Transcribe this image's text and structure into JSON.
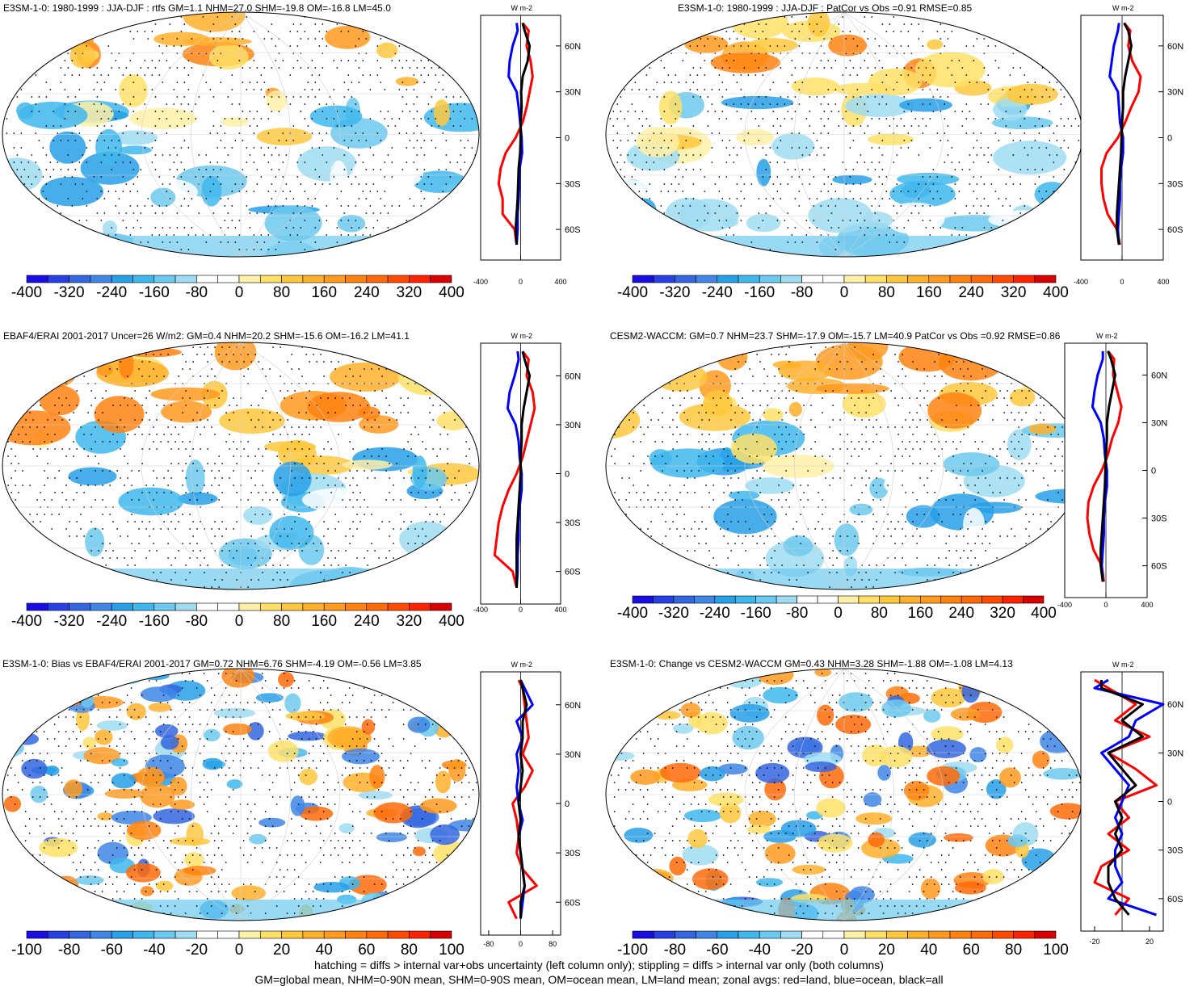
{
  "chart_data": [
    {
      "type": "heatmap",
      "title": "E3SM-1-0: 1980-1999 : JJA-DJF : rtfs GM=1.1 NHM=27.0 SHM=-19.8 OM=-16.8 LM=45.0",
      "colorbar_ticks": [
        "-400",
        "-320",
        "-240",
        "-160",
        "-80",
        "0",
        "80",
        "160",
        "240",
        "320",
        "400"
      ],
      "profile": {
        "unit": "W m-2",
        "xticks": [
          "-400",
          "0",
          "400"
        ],
        "xlim": [
          -400,
          400
        ],
        "yticks": [
          "60N",
          "30N",
          "0",
          "30S",
          "60S"
        ],
        "series": [
          {
            "color": "#ff0000",
            "lat": [
              75,
              70,
              60,
              50,
              40,
              30,
              20,
              10,
              0,
              -10,
              -20,
              -30,
              -40,
              -50,
              -60,
              -70
            ],
            "values": [
              20,
              80,
              60,
              100,
              120,
              90,
              60,
              20,
              -50,
              -150,
              -200,
              -220,
              -180,
              -180,
              -60,
              -40
            ]
          },
          {
            "color": "#0000ff",
            "lat": [
              75,
              70,
              60,
              50,
              40,
              30,
              20,
              10,
              0,
              -10,
              -20,
              -30,
              -40,
              -50,
              -60,
              -70
            ],
            "values": [
              -40,
              -30,
              -80,
              -110,
              -120,
              -40,
              -20,
              -5,
              10,
              15,
              -10,
              -15,
              -20,
              -30,
              -30,
              -40
            ]
          },
          {
            "color": "#000000",
            "lat": [
              75,
              70,
              60,
              50,
              40,
              30,
              20,
              10,
              0,
              -10,
              -20,
              -30,
              -40,
              -50,
              -60,
              -70
            ],
            "values": [
              20,
              40,
              90,
              70,
              20,
              5,
              10,
              0,
              0,
              -5,
              -20,
              -25,
              -30,
              -40,
              -50,
              -40
            ]
          }
        ]
      }
    },
    {
      "type": "heatmap",
      "title": "E3SM-1-0: 1980-1999 : JJA-DJF : PatCor vs Obs =0.91 RMSE=0.85",
      "colorbar_ticks": [
        "-400",
        "-320",
        "-240",
        "-160",
        "-80",
        "0",
        "80",
        "160",
        "240",
        "320",
        "400"
      ],
      "profile": {
        "unit": "W m-2",
        "xticks": [
          "-400",
          "0",
          "400"
        ],
        "xlim": [
          -400,
          400
        ],
        "yticks": [
          "60N",
          "30N",
          "0",
          "30S",
          "60S"
        ],
        "series": [
          {
            "color": "#ff0000",
            "lat": [
              75,
              70,
              60,
              50,
              40,
              30,
              20,
              10,
              0,
              -10,
              -20,
              -30,
              -40,
              -50,
              -60,
              -70
            ],
            "values": [
              20,
              80,
              60,
              100,
              180,
              160,
              90,
              30,
              -40,
              -150,
              -200,
              -200,
              -180,
              -140,
              -50,
              -20
            ]
          },
          {
            "color": "#0000ff",
            "lat": [
              75,
              70,
              60,
              50,
              40,
              30,
              20,
              10,
              0,
              -10,
              -20,
              -30,
              -40,
              -50,
              -60,
              -70
            ],
            "values": [
              -30,
              -40,
              -80,
              -100,
              -120,
              -40,
              -30,
              -20,
              10,
              10,
              -10,
              -20,
              -20,
              -30,
              -40,
              -30
            ]
          },
          {
            "color": "#000000",
            "lat": [
              75,
              70,
              60,
              50,
              40,
              30,
              20,
              10,
              0,
              -10,
              -20,
              -30,
              -40,
              -50,
              -60,
              -70
            ],
            "values": [
              20,
              60,
              90,
              60,
              30,
              10,
              10,
              0,
              -5,
              -10,
              -20,
              -30,
              -40,
              -50,
              -50,
              -30
            ]
          }
        ]
      }
    },
    {
      "type": "heatmap",
      "title": "EBAF4/ERAI 2001-2017 Uncer=26 W/m2: GM=0.4 NHM=20.2 SHM=-15.6 OM=-16.2 LM=41.1",
      "colorbar_ticks": [
        "-400",
        "-320",
        "-240",
        "-160",
        "-80",
        "0",
        "80",
        "160",
        "240",
        "320",
        "400"
      ],
      "profile": {
        "unit": "W m-2",
        "xticks": [
          "-400",
          "0",
          "400"
        ],
        "xlim": [
          -400,
          400
        ],
        "yticks": [
          "60N",
          "30N",
          "0",
          "30S",
          "60S"
        ],
        "series": [
          {
            "color": "#ff0000",
            "lat": [
              75,
              70,
              60,
              50,
              40,
              30,
              20,
              10,
              0,
              -10,
              -20,
              -30,
              -40,
              -50,
              -60,
              -70
            ],
            "values": [
              20,
              80,
              60,
              120,
              140,
              100,
              60,
              20,
              -40,
              -120,
              -180,
              -220,
              -240,
              -260,
              -80,
              -40
            ]
          },
          {
            "color": "#0000ff",
            "lat": [
              75,
              70,
              60,
              50,
              40,
              30,
              20,
              10,
              0,
              -10,
              -20,
              -30,
              -40,
              -50,
              -60,
              -70
            ],
            "values": [
              -30,
              -20,
              -60,
              -110,
              -130,
              -50,
              -20,
              -10,
              10,
              10,
              -10,
              -20,
              -20,
              -30,
              -30,
              -40
            ]
          },
          {
            "color": "#000000",
            "lat": [
              75,
              70,
              60,
              50,
              40,
              30,
              20,
              10,
              0,
              -10,
              -20,
              -30,
              -40,
              -50,
              -60,
              -70
            ],
            "values": [
              20,
              40,
              90,
              60,
              30,
              10,
              10,
              0,
              0,
              -10,
              -20,
              -30,
              -40,
              -40,
              -40,
              -40
            ]
          }
        ]
      }
    },
    {
      "type": "heatmap",
      "title": "CESM2-WACCM: GM=0.7 NHM=23.7 SHM=-17.9 OM=-15.7 LM=40.9 PatCor vs Obs =0.92 RMSE=0.86",
      "colorbar_ticks": [
        "-400",
        "-320",
        "-240",
        "-160",
        "-80",
        "0",
        "80",
        "160",
        "240",
        "320",
        "400"
      ],
      "profile": {
        "unit": "W m-2",
        "xticks": [
          "-400",
          "0",
          "400"
        ],
        "xlim": [
          -400,
          400
        ],
        "yticks": [
          "60N",
          "30N",
          "0",
          "30S",
          "60S"
        ],
        "series": [
          {
            "color": "#ff0000",
            "lat": [
              75,
              70,
              60,
              50,
              40,
              30,
              20,
              10,
              0,
              -10,
              -20,
              -30,
              -40,
              -50,
              -60,
              -70
            ],
            "values": [
              20,
              80,
              70,
              110,
              150,
              120,
              60,
              20,
              -40,
              -120,
              -170,
              -180,
              -160,
              -120,
              -40,
              -20
            ]
          },
          {
            "color": "#0000ff",
            "lat": [
              75,
              70,
              60,
              50,
              40,
              30,
              20,
              10,
              0,
              -10,
              -20,
              -30,
              -40,
              -50,
              -60,
              -70
            ],
            "values": [
              -30,
              -30,
              -80,
              -110,
              -130,
              -50,
              -20,
              -10,
              10,
              10,
              -10,
              -20,
              -20,
              -30,
              -40,
              -30
            ]
          },
          {
            "color": "#000000",
            "lat": [
              75,
              70,
              60,
              50,
              40,
              30,
              20,
              10,
              0,
              -10,
              -20,
              -30,
              -40,
              -50,
              -60,
              -70
            ],
            "values": [
              20,
              50,
              90,
              60,
              30,
              10,
              10,
              0,
              -5,
              -10,
              -20,
              -30,
              -40,
              -50,
              -50,
              -30
            ]
          }
        ]
      }
    },
    {
      "type": "heatmap",
      "title": "E3SM-1-0: Bias vs EBAF4/ERAI 2001-2017 GM=0.72 NHM=6.76 SHM=-4.19 OM=-0.56 LM=3.85",
      "colorbar_ticks": [
        "-100",
        "-80",
        "-60",
        "-40",
        "-20",
        "0",
        "20",
        "40",
        "60",
        "80",
        "100"
      ],
      "profile": {
        "unit": "W m-2",
        "xticks": [
          "-80",
          "0",
          "80"
        ],
        "xlim": [
          -100,
          100
        ],
        "yticks": [
          "60N",
          "30N",
          "0",
          "30S",
          "60S"
        ],
        "series": [
          {
            "color": "#ff0000",
            "lat": [
              75,
              70,
              60,
              50,
              40,
              30,
              20,
              10,
              0,
              -10,
              -20,
              -30,
              -40,
              -50,
              -60,
              -70
            ],
            "values": [
              -5,
              5,
              10,
              15,
              20,
              5,
              30,
              10,
              -20,
              -10,
              -5,
              -10,
              5,
              40,
              -30,
              -10
            ]
          },
          {
            "color": "#0000ff",
            "lat": [
              75,
              70,
              60,
              50,
              40,
              30,
              20,
              10,
              0,
              -10,
              -20,
              -30,
              -40,
              -50,
              -60,
              -70
            ],
            "values": [
              0,
              10,
              30,
              -10,
              5,
              -10,
              -5,
              -10,
              -5,
              5,
              -5,
              0,
              5,
              10,
              5,
              0
            ]
          },
          {
            "color": "#000000",
            "lat": [
              75,
              70,
              60,
              50,
              40,
              30,
              20,
              10,
              0,
              -10,
              -20,
              -30,
              -40,
              -50,
              -60,
              -70
            ],
            "values": [
              0,
              5,
              15,
              5,
              5,
              0,
              5,
              0,
              -5,
              0,
              -5,
              0,
              5,
              10,
              0,
              0
            ]
          }
        ]
      }
    },
    {
      "type": "heatmap",
      "title": "E3SM-1-0: Change vs CESM2-WACCM GM=0.43 NHM=3.28 SHM=-1.88 OM=-1.08 LM=4.13",
      "colorbar_ticks": [
        "-100",
        "-80",
        "-60",
        "-40",
        "-20",
        "0",
        "20",
        "40",
        "60",
        "80",
        "100"
      ],
      "profile": {
        "unit": "W m-2",
        "xticks": [
          "-20",
          "20"
        ],
        "xlim": [
          -30,
          30
        ],
        "yticks": [
          "60N",
          "30N",
          "0",
          "30S",
          "60S"
        ],
        "series": [
          {
            "color": "#ff0000",
            "lat": [
              75,
              70,
              60,
              50,
              40,
              30,
              20,
              10,
              0,
              -10,
              -20,
              -30,
              -40,
              -50,
              -60,
              -70
            ],
            "values": [
              -20,
              -10,
              10,
              -5,
              20,
              -10,
              10,
              25,
              -5,
              5,
              -10,
              5,
              -15,
              -20,
              5,
              -5
            ]
          },
          {
            "color": "#0000ff",
            "lat": [
              75,
              70,
              60,
              50,
              40,
              30,
              20,
              10,
              0,
              -10,
              -20,
              -30,
              -40,
              -50,
              -60,
              -70
            ],
            "values": [
              -10,
              -20,
              30,
              10,
              5,
              -15,
              -5,
              5,
              0,
              -5,
              0,
              -5,
              -5,
              0,
              -10,
              25
            ]
          },
          {
            "color": "#000000",
            "lat": [
              75,
              70,
              60,
              50,
              40,
              30,
              20,
              10,
              0,
              -10,
              -20,
              -30,
              -40,
              -50,
              -60,
              -70
            ],
            "values": [
              -15,
              -15,
              15,
              0,
              15,
              -10,
              0,
              10,
              -5,
              0,
              -5,
              0,
              -10,
              -10,
              -5,
              5
            ]
          }
        ]
      }
    }
  ],
  "colorbar_colors": [
    "#1a0de3",
    "#2740e6",
    "#3466e0",
    "#3f86e6",
    "#27a0e8",
    "#3fb7ec",
    "#6cc9ef",
    "#9fdcf2",
    "#ffffff",
    "#ffffff",
    "#fff0a8",
    "#ffe066",
    "#ffc83c",
    "#ffb02a",
    "#ff9a1e",
    "#ff8210",
    "#ff6a08",
    "#ff4a00",
    "#ff2200",
    "#d80000"
  ],
  "footer": {
    "line1": "hatching = diffs > internal var+obs uncertainty (left column only); stippling = diffs > internal var only (both columns)",
    "line2": "GM=global mean, NHM=0-90N mean, SHM=0-90S mean, OM=ocean mean, LM=land mean; zonal avgs: red=land, blue=ocean, black=all"
  }
}
